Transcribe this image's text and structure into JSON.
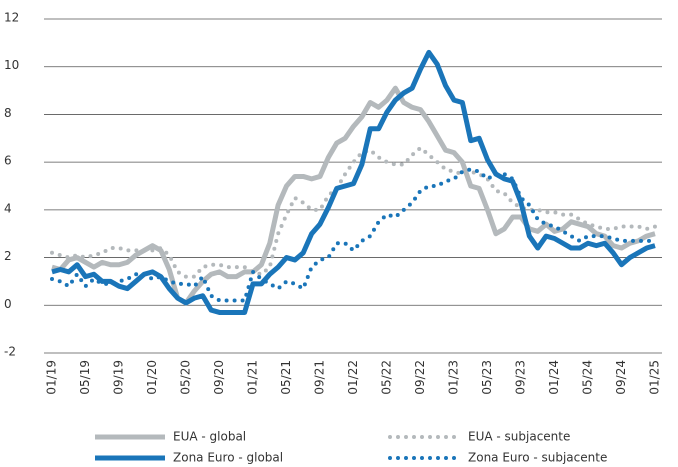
{
  "chart_data": {
    "type": "line",
    "categories": [
      "01/19",
      null,
      null,
      null,
      "05/19",
      null,
      null,
      null,
      "09/19",
      null,
      null,
      null,
      "01/20",
      null,
      null,
      null,
      "05/20",
      null,
      null,
      null,
      "09/20",
      null,
      null,
      null,
      "01/21",
      null,
      null,
      null,
      "05/21",
      null,
      null,
      null,
      "09/21",
      null,
      null,
      null,
      "01/22",
      null,
      null,
      null,
      "05/22",
      null,
      null,
      null,
      "09/22",
      null,
      null,
      null,
      "01/23",
      null,
      null,
      null,
      "05/23",
      null,
      null,
      null,
      "09/23",
      null,
      null,
      null,
      "01/24",
      null,
      null,
      null,
      "05/24",
      null,
      null,
      null,
      "09/24",
      null,
      null,
      null,
      "01/25"
    ],
    "series": [
      {
        "name": "EUA - global",
        "color": "#b4b9bc",
        "style": "solid",
        "values": [
          1.6,
          1.5,
          1.9,
          2.0,
          1.8,
          1.6,
          1.8,
          1.7,
          1.7,
          1.8,
          2.1,
          2.3,
          2.5,
          2.3,
          1.5,
          0.3,
          0.1,
          0.6,
          1.0,
          1.3,
          1.4,
          1.2,
          1.2,
          1.4,
          1.4,
          1.7,
          2.6,
          4.2,
          5.0,
          5.4,
          5.4,
          5.3,
          5.4,
          6.2,
          6.8,
          7.0,
          7.5,
          7.9,
          8.5,
          8.3,
          8.6,
          9.1,
          8.5,
          8.3,
          8.2,
          7.7,
          7.1,
          6.5,
          6.4,
          6.0,
          5.0,
          4.9,
          4.0,
          3.0,
          3.2,
          3.7,
          3.7,
          3.2,
          3.1,
          3.4,
          3.1,
          3.2,
          3.5,
          3.4,
          3.3,
          3.0,
          2.9,
          2.5,
          2.4,
          2.6,
          2.7,
          2.9,
          3.0
        ]
      },
      {
        "name": "EUA - subjacente",
        "color": "#b4b9bc",
        "style": "dotted",
        "values": [
          2.2,
          2.1,
          2.0,
          2.1,
          2.0,
          2.1,
          2.2,
          2.4,
          2.4,
          2.3,
          2.3,
          2.3,
          2.3,
          2.4,
          2.1,
          1.4,
          1.2,
          1.2,
          1.6,
          1.7,
          1.7,
          1.6,
          1.6,
          1.6,
          1.4,
          1.3,
          1.6,
          3.0,
          3.8,
          4.5,
          4.3,
          4.0,
          4.0,
          4.6,
          4.9,
          5.5,
          6.0,
          6.4,
          6.5,
          6.2,
          6.0,
          5.9,
          5.9,
          6.3,
          6.6,
          6.3,
          6.0,
          5.7,
          5.6,
          5.5,
          5.6,
          5.5,
          5.3,
          4.8,
          4.7,
          4.3,
          4.1,
          4.0,
          4.0,
          3.9,
          3.9,
          3.8,
          3.8,
          3.6,
          3.4,
          3.3,
          3.2,
          3.2,
          3.3,
          3.3,
          3.3,
          3.2,
          3.3
        ]
      },
      {
        "name": "Zona Euro - global",
        "color": "#1a75b9",
        "style": "solid",
        "values": [
          1.4,
          1.5,
          1.4,
          1.7,
          1.2,
          1.3,
          1.0,
          1.0,
          0.8,
          0.7,
          1.0,
          1.3,
          1.4,
          1.2,
          0.7,
          0.3,
          0.1,
          0.3,
          0.4,
          -0.2,
          -0.3,
          -0.3,
          -0.3,
          -0.3,
          0.9,
          0.9,
          1.3,
          1.6,
          2.0,
          1.9,
          2.2,
          3.0,
          3.4,
          4.1,
          4.9,
          5.0,
          5.1,
          5.9,
          7.4,
          7.4,
          8.1,
          8.6,
          8.9,
          9.1,
          9.9,
          10.6,
          10.1,
          9.2,
          8.6,
          8.5,
          6.9,
          7.0,
          6.1,
          5.5,
          5.3,
          5.2,
          4.3,
          2.9,
          2.4,
          2.9,
          2.8,
          2.6,
          2.4,
          2.4,
          2.6,
          2.5,
          2.6,
          2.2,
          1.7,
          2.0,
          2.2,
          2.4,
          2.5
        ]
      },
      {
        "name": "Zona Euro - subjacente",
        "color": "#1a75b9",
        "style": "dotted",
        "values": [
          1.1,
          1.0,
          0.8,
          1.3,
          0.8,
          1.1,
          0.9,
          0.9,
          1.0,
          1.1,
          1.3,
          1.3,
          1.1,
          1.2,
          1.0,
          0.9,
          0.9,
          0.8,
          1.2,
          0.4,
          0.2,
          0.2,
          0.2,
          0.2,
          1.4,
          1.1,
          0.9,
          0.7,
          1.0,
          0.9,
          0.7,
          1.6,
          1.9,
          2.0,
          2.6,
          2.6,
          2.3,
          2.7,
          2.9,
          3.5,
          3.8,
          3.7,
          4.0,
          4.3,
          4.8,
          5.0,
          5.0,
          5.2,
          5.3,
          5.6,
          5.7,
          5.6,
          5.3,
          5.5,
          5.5,
          5.3,
          4.5,
          4.2,
          3.6,
          3.4,
          3.3,
          3.1,
          2.9,
          2.7,
          2.9,
          2.9,
          2.9,
          2.8,
          2.7,
          2.7,
          2.7,
          2.7,
          2.7
        ]
      }
    ],
    "ylim": [
      -2,
      12
    ],
    "yticks": [
      -2,
      0,
      2,
      4,
      6,
      8,
      10,
      12
    ],
    "grid": true
  }
}
